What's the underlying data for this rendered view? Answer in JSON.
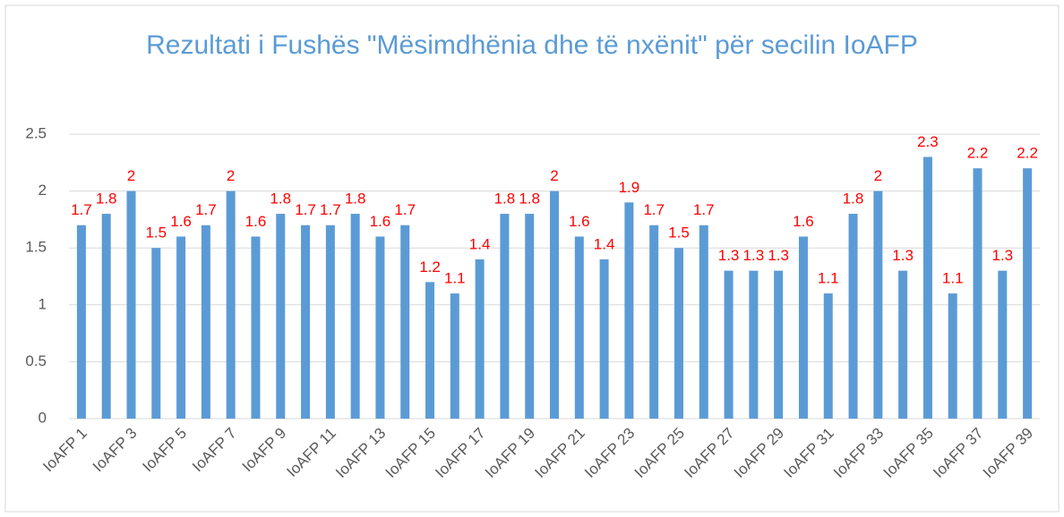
{
  "chart_data": {
    "type": "bar",
    "title": "Rezultati i Fushës \"Mësimdhënia dhe të nxënit\" për secilin IoAFP",
    "categories": [
      "IoAFP 1",
      null,
      "IoAFP 3",
      null,
      "IoAFP 5",
      null,
      "IoAFP 7",
      null,
      "IoAFP 9",
      null,
      "IoAFP 11",
      null,
      "IoAFP 13",
      null,
      "IoAFP 15",
      null,
      "IoAFP 17",
      null,
      "IoAFP 19",
      null,
      "IoAFP 21",
      null,
      "IoAFP 23",
      null,
      "IoAFP 25",
      null,
      "IoAFP 27",
      null,
      "IoAFP 29",
      null,
      "IoAFP 31",
      null,
      "IoAFP 33",
      null,
      "IoAFP 35",
      null,
      "IoAFP 37",
      null,
      "IoAFP 39"
    ],
    "values": [
      1.7,
      1.8,
      2,
      1.5,
      1.6,
      1.7,
      2,
      1.6,
      1.8,
      1.7,
      1.7,
      1.8,
      1.6,
      1.7,
      1.2,
      1.1,
      1.4,
      1.8,
      1.8,
      2,
      1.6,
      1.4,
      1.9,
      1.7,
      1.5,
      1.7,
      1.3,
      1.3,
      1.3,
      1.6,
      1.1,
      1.8,
      2,
      1.3,
      2.3,
      1.1,
      2.2,
      1.3,
      2.2
    ],
    "color": "#5b9bd5",
    "label_color": "#ff0000",
    "ylim": [
      0,
      2.5
    ],
    "yticks": [
      0,
      0.5,
      1,
      1.5,
      2,
      2.5
    ],
    "grid": true
  }
}
